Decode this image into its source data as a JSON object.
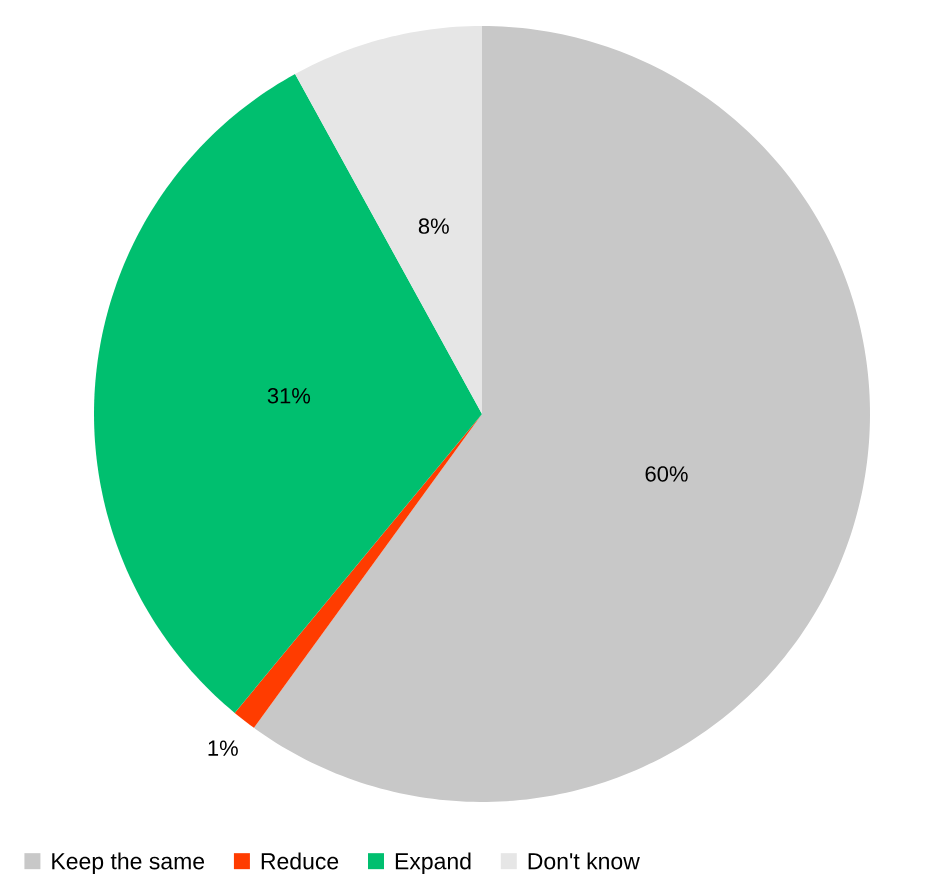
{
  "chart_data": {
    "type": "pie",
    "categories": [
      "Keep the same",
      "Reduce",
      "Expand",
      "Don't know"
    ],
    "values": [
      60,
      1,
      31,
      8
    ],
    "value_labels": [
      "60%",
      "1%",
      "31%",
      "8%"
    ],
    "colors": [
      "#c8c8c8",
      "#ff3c00",
      "#00bf6f",
      "#e6e6e6"
    ],
    "legend": "bottom"
  }
}
